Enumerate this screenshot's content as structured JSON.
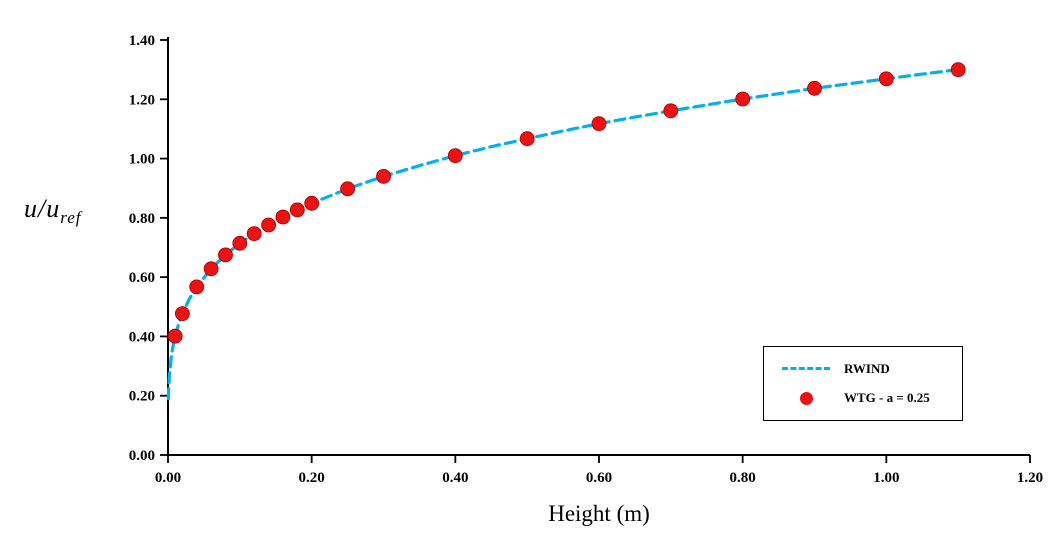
{
  "chart_data": {
    "type": "line+scatter",
    "title": "",
    "xlabel": "Height (m)",
    "ylabel": "u/u_ref",
    "ylabel_main": "u/u",
    "ylabel_sub": "ref",
    "xlim": [
      0,
      1.2
    ],
    "ylim": [
      0,
      1.4
    ],
    "xticks": [
      0.0,
      0.2,
      0.4,
      0.6,
      0.8,
      1.0,
      1.2
    ],
    "yticks": [
      0.0,
      0.2,
      0.4,
      0.6,
      0.8,
      1.0,
      1.2,
      1.4
    ],
    "grid": false,
    "legend_position": "lower-right",
    "series": [
      {
        "name": "RWIND",
        "type": "line",
        "style": "dashed",
        "color": "#00B0F0",
        "x": [
          0.0005,
          0.001,
          0.002,
          0.004,
          0.006,
          0.008,
          0.01,
          0.015,
          0.02,
          0.03,
          0.04,
          0.06,
          0.08,
          0.1,
          0.12,
          0.15,
          0.18,
          0.2,
          0.25,
          0.3,
          0.35,
          0.4,
          0.45,
          0.5,
          0.55,
          0.6,
          0.65,
          0.7,
          0.75,
          0.8,
          0.85,
          0.9,
          0.95,
          1.0,
          1.05,
          1.1
        ],
        "y": [
          0.19,
          0.226,
          0.268,
          0.319,
          0.353,
          0.38,
          0.401,
          0.444,
          0.477,
          0.528,
          0.567,
          0.628,
          0.675,
          0.714,
          0.747,
          0.79,
          0.827,
          0.849,
          0.898,
          0.94,
          0.976,
          1.01,
          1.04,
          1.067,
          1.093,
          1.118,
          1.14,
          1.161,
          1.181,
          1.201,
          1.219,
          1.237,
          1.253,
          1.269,
          1.285,
          1.3
        ]
      },
      {
        "name": "WTG - a = 0.25",
        "type": "scatter",
        "marker": "circle",
        "color": "#ee1111",
        "x": [
          0.01,
          0.02,
          0.04,
          0.06,
          0.08,
          0.1,
          0.12,
          0.14,
          0.16,
          0.18,
          0.2,
          0.25,
          0.3,
          0.4,
          0.5,
          0.6,
          0.7,
          0.8,
          0.9,
          1.0,
          1.1
        ],
        "y": [
          0.401,
          0.477,
          0.567,
          0.628,
          0.675,
          0.714,
          0.747,
          0.776,
          0.803,
          0.827,
          0.849,
          0.898,
          0.94,
          1.01,
          1.067,
          1.118,
          1.161,
          1.201,
          1.237,
          1.269,
          1.3
        ]
      }
    ]
  }
}
